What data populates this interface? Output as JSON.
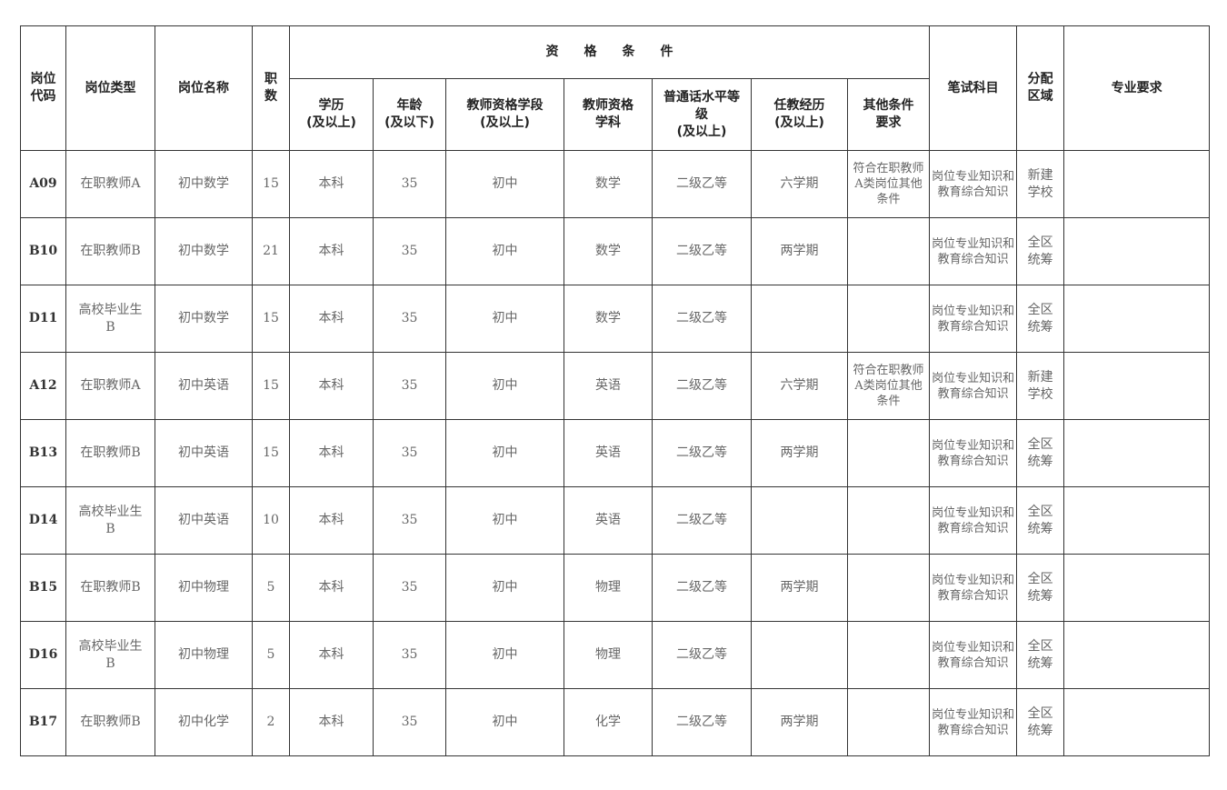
{
  "header": {
    "code": "岗位\n代码",
    "type": "岗位类型",
    "name": "岗位名称",
    "count": "职\n数",
    "group": "资　　格　　条　　件",
    "education": "学历\n(及以上)",
    "age": "年龄\n(及以下)",
    "cert_level": "教师资格学段\n(及以上)",
    "cert_subject": "教师资格\n学科",
    "mandarin": "普通话水平等\n级\n(及以上)",
    "experience": "任教经历\n(及以上)",
    "other": "其他条件\n要求",
    "exam": "笔试科目",
    "area": "分配\n区域",
    "major": "专业要求"
  },
  "rows": [
    [
      "A09",
      "在职教师A",
      "初中数学",
      "15",
      "本科",
      "35",
      "初中",
      "数学",
      "二级乙等",
      "六学期",
      "符合在职教师A类岗位其他条件",
      "岗位专业知识和教育综合知识",
      "新建\n学校",
      ""
    ],
    [
      "B10",
      "在职教师B",
      "初中数学",
      "21",
      "本科",
      "35",
      "初中",
      "数学",
      "二级乙等",
      "两学期",
      "",
      "岗位专业知识和教育综合知识",
      "全区\n统筹",
      ""
    ],
    [
      "D11",
      "高校毕业生\nB",
      "初中数学",
      "15",
      "本科",
      "35",
      "初中",
      "数学",
      "二级乙等",
      "",
      "",
      "岗位专业知识和教育综合知识",
      "全区\n统筹",
      ""
    ],
    [
      "A12",
      "在职教师A",
      "初中英语",
      "15",
      "本科",
      "35",
      "初中",
      "英语",
      "二级乙等",
      "六学期",
      "符合在职教师A类岗位其他条件",
      "岗位专业知识和教育综合知识",
      "新建\n学校",
      ""
    ],
    [
      "B13",
      "在职教师B",
      "初中英语",
      "15",
      "本科",
      "35",
      "初中",
      "英语",
      "二级乙等",
      "两学期",
      "",
      "岗位专业知识和教育综合知识",
      "全区\n统筹",
      ""
    ],
    [
      "D14",
      "高校毕业生\nB",
      "初中英语",
      "10",
      "本科",
      "35",
      "初中",
      "英语",
      "二级乙等",
      "",
      "",
      "岗位专业知识和教育综合知识",
      "全区\n统筹",
      ""
    ],
    [
      "B15",
      "在职教师B",
      "初中物理",
      "5",
      "本科",
      "35",
      "初中",
      "物理",
      "二级乙等",
      "两学期",
      "",
      "岗位专业知识和教育综合知识",
      "全区\n统筹",
      ""
    ],
    [
      "D16",
      "高校毕业生\nB",
      "初中物理",
      "5",
      "本科",
      "35",
      "初中",
      "物理",
      "二级乙等",
      "",
      "",
      "岗位专业知识和教育综合知识",
      "全区\n统筹",
      ""
    ],
    [
      "B17",
      "在职教师B",
      "初中化学",
      "2",
      "本科",
      "35",
      "初中",
      "化学",
      "二级乙等",
      "两学期",
      "",
      "岗位专业知识和教育综合知识",
      "全区\n统筹",
      ""
    ]
  ]
}
